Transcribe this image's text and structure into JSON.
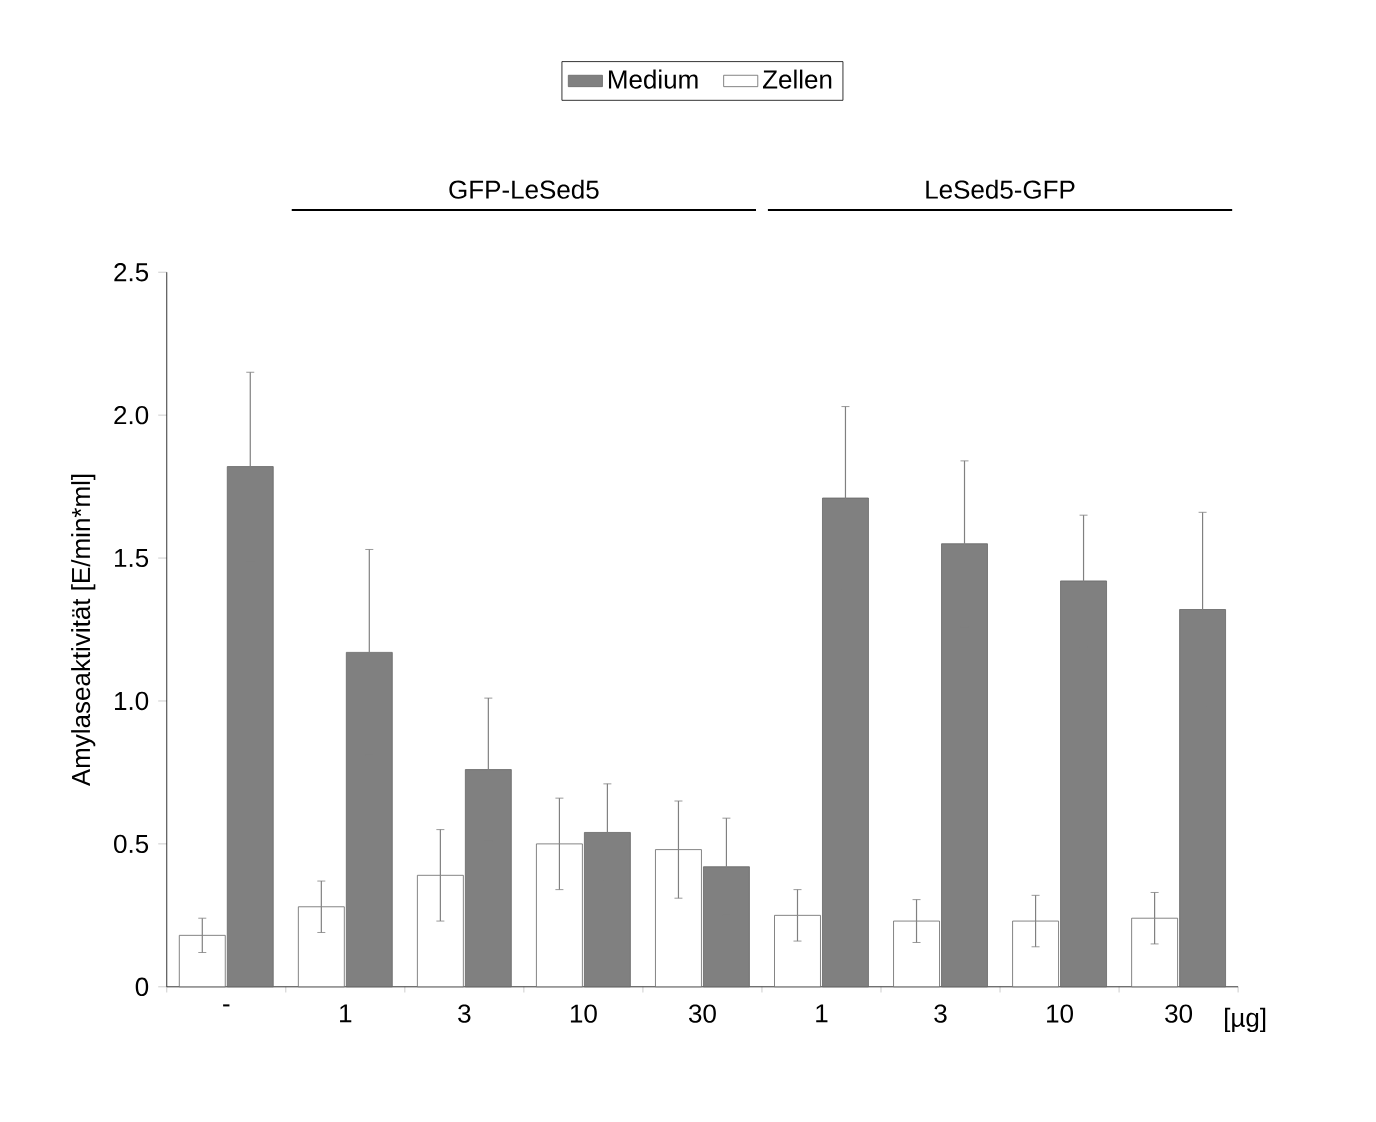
{
  "chart_data": {
    "type": "bar",
    "categories": [
      "-",
      "1",
      "3",
      "10",
      "30",
      "1",
      "3",
      "10",
      "30"
    ],
    "series": [
      {
        "name": "Zellen",
        "color": "#ffffff",
        "values": [
          0.18,
          0.28,
          0.39,
          0.5,
          0.48,
          0.25,
          0.23,
          0.23,
          0.24
        ],
        "errors": [
          0.06,
          0.09,
          0.16,
          0.16,
          0.17,
          0.09,
          0.075,
          0.09,
          0.09
        ]
      },
      {
        "name": "Medium",
        "color": "#808080",
        "values": [
          1.82,
          1.17,
          0.76,
          0.54,
          0.42,
          1.71,
          1.55,
          1.42,
          1.32
        ],
        "errors": [
          0.33,
          0.36,
          0.25,
          0.17,
          0.17,
          0.32,
          0.29,
          0.23,
          0.34
        ]
      }
    ],
    "xlabel": "[µg]",
    "ylabel": "Amylaseaktivität [E/min*ml]",
    "annotations": [
      "GFP-LeSed5",
      "LeSed5-GFP"
    ],
    "ylim": [
      0,
      2.5
    ],
    "yticks": [
      0,
      0.5,
      {
        "value": 1.0,
        "label": "1.0"
      },
      {
        "value": 1.5,
        "label": "1.5"
      },
      {
        "value": 2.0,
        "label": "2.0"
      },
      {
        "value": 2.5,
        "label": "2.5"
      }
    ],
    "legend": "top",
    "grid": false
  }
}
